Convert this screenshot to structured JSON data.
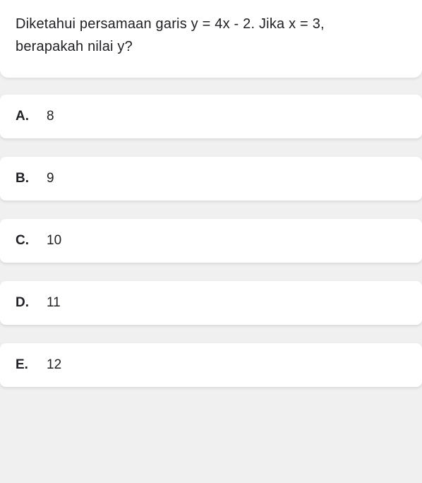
{
  "question": {
    "line1": "Diketahui persamaan garis y = 4x - 2. Jika x = 3,",
    "line2": "berapakah nilai y?"
  },
  "options": [
    {
      "letter": "A.",
      "value": "8"
    },
    {
      "letter": "B.",
      "value": "9"
    },
    {
      "letter": "C.",
      "value": "10"
    },
    {
      "letter": "D.",
      "value": "11"
    },
    {
      "letter": "E.",
      "value": "12"
    }
  ],
  "styling": {
    "background_color": "#f0f0f0",
    "card_background": "#ffffff",
    "text_color": "#202124",
    "question_fontsize": 20,
    "option_fontsize": 19,
    "card_gap": 26,
    "card_border_radius": 8,
    "shadow": "0 2px 4px rgba(0,0,0,0.1)"
  }
}
